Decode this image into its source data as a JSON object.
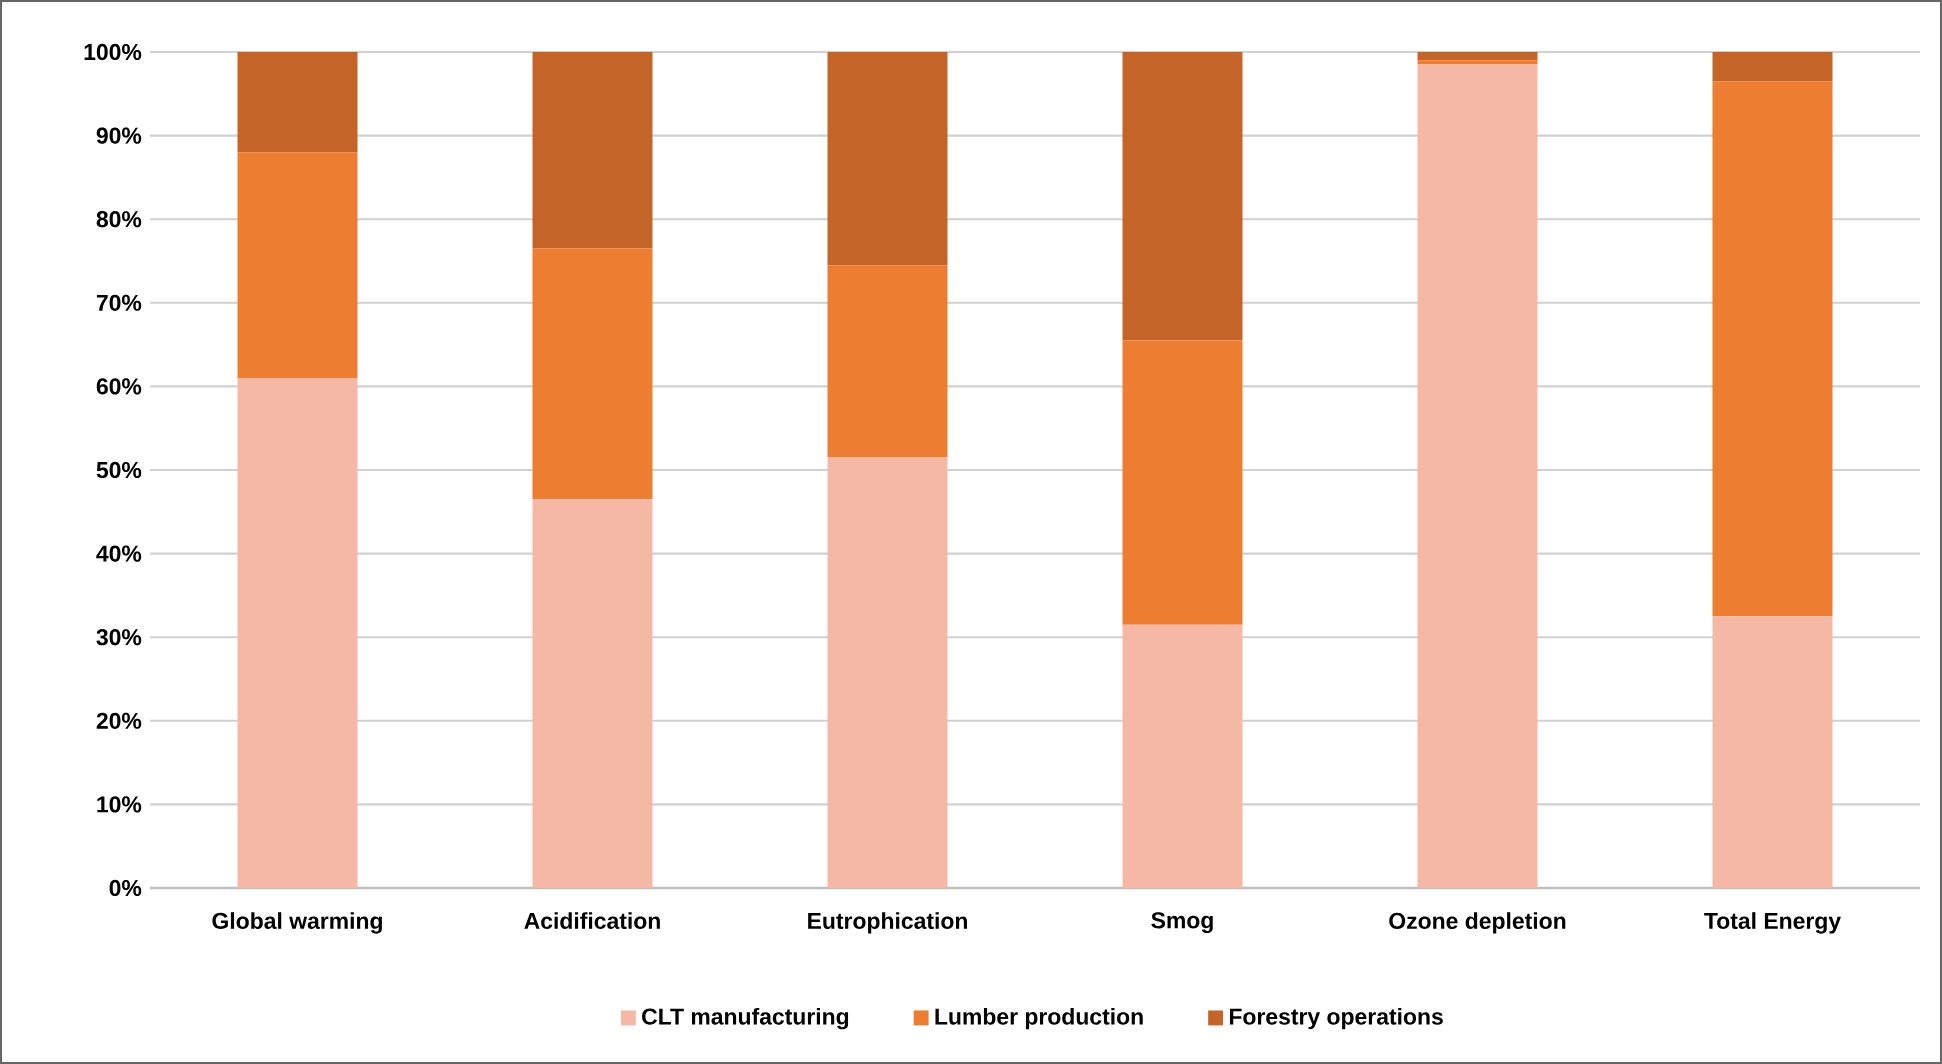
{
  "chart_data": {
    "type": "bar",
    "stacked": true,
    "categories": [
      "Global warming",
      "Acidification",
      "Eutrophication",
      "Smog",
      "Ozone depletion",
      "Total Energy"
    ],
    "series": [
      {
        "name": "CLT manufacturing",
        "color": "#f4b8a4",
        "values": [
          61,
          46.5,
          51.5,
          31.5,
          98.5,
          32.5
        ]
      },
      {
        "name": "Lumber production",
        "color": "#ed7d31",
        "values": [
          27,
          30,
          23,
          34,
          0.5,
          64
        ]
      },
      {
        "name": "Forestry operations",
        "color": "#c46527",
        "values": [
          12,
          23.5,
          25.5,
          34.5,
          1,
          3.5
        ]
      }
    ],
    "ylim": [
      0,
      100
    ],
    "yticks": [
      {
        "value": 0,
        "label": "0%"
      },
      {
        "value": 10,
        "label": "10%"
      },
      {
        "value": 20,
        "label": "20%"
      },
      {
        "value": 30,
        "label": "30%"
      },
      {
        "value": 40,
        "label": "40%"
      },
      {
        "value": 50,
        "label": "50%"
      },
      {
        "value": 60,
        "label": "60%"
      },
      {
        "value": 70,
        "label": "70%"
      },
      {
        "value": 80,
        "label": "80%"
      },
      {
        "value": 90,
        "label": "90%"
      },
      {
        "value": 100,
        "label": "100%"
      }
    ],
    "grid": "y",
    "legend": "bottom"
  }
}
